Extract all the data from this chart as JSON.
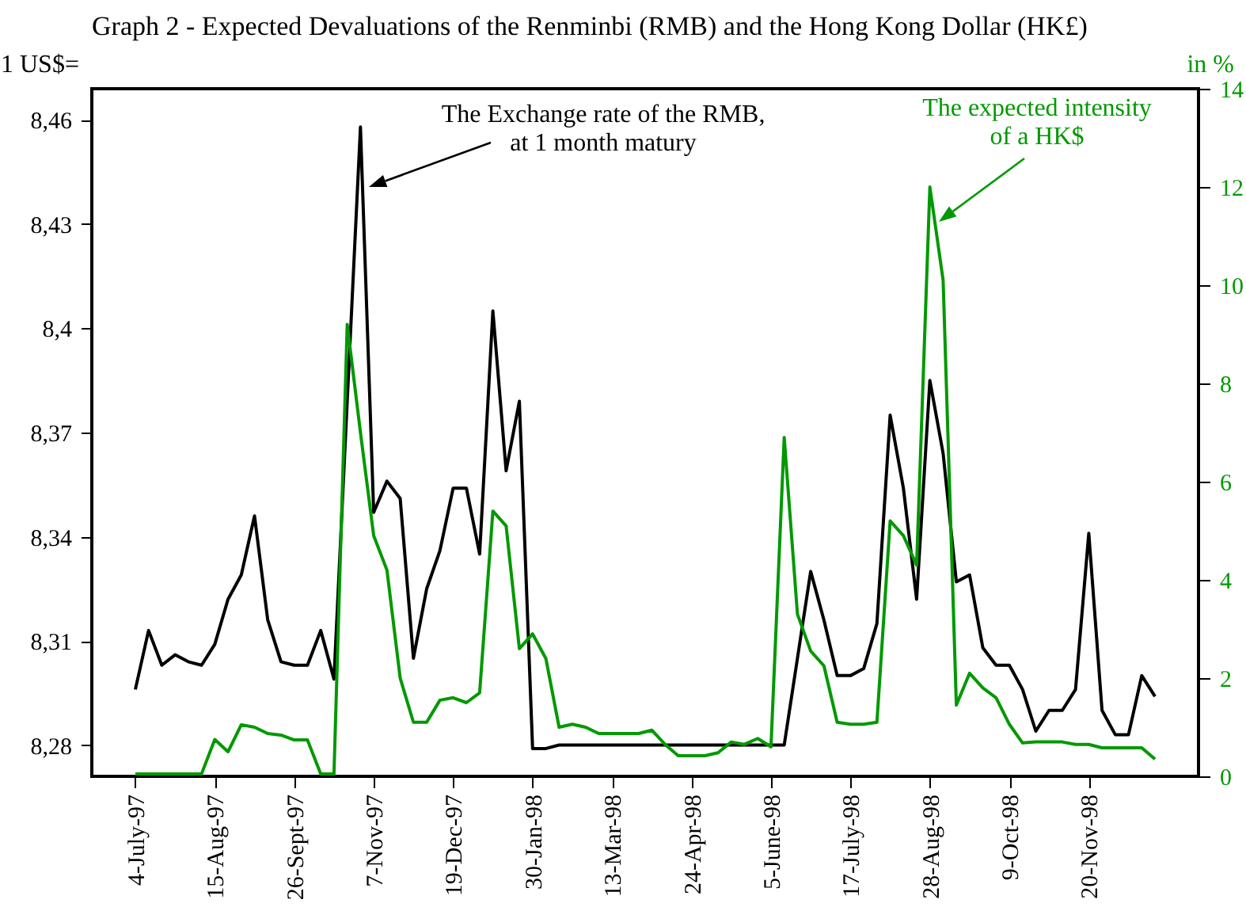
{
  "chart_data": {
    "type": "line",
    "title": "Graph 2 - Expected Devaluations of the Renminbi (RMB) and the Hong Kong Dollar (HK£)",
    "ylabel": "1 US$=",
    "y2label": "in %",
    "x": [
      "1997-07-04",
      "1997-07-11",
      "1997-07-18",
      "1997-07-25",
      "1997-08-01",
      "1997-08-08",
      "1997-08-15",
      "1997-08-22",
      "1997-08-29",
      "1997-09-05",
      "1997-09-12",
      "1997-09-19",
      "1997-09-26",
      "1997-10-03",
      "1997-10-10",
      "1997-10-17",
      "1997-10-24",
      "1997-10-31",
      "1997-11-07",
      "1997-11-14",
      "1997-11-21",
      "1997-11-28",
      "1997-12-05",
      "1997-12-12",
      "1997-12-19",
      "1997-12-26",
      "1998-01-02",
      "1998-01-09",
      "1998-01-16",
      "1998-01-23",
      "1998-01-30",
      "1998-02-06",
      "1998-02-13",
      "1998-02-20",
      "1998-02-27",
      "1998-03-06",
      "1998-03-13",
      "1998-03-20",
      "1998-03-27",
      "1998-04-03",
      "1998-04-10",
      "1998-04-17",
      "1998-04-24",
      "1998-05-01",
      "1998-05-08",
      "1998-05-15",
      "1998-05-22",
      "1998-05-29",
      "1998-06-05",
      "1998-06-12",
      "1998-06-19",
      "1998-06-26",
      "1998-07-03",
      "1998-07-10",
      "1998-07-17",
      "1998-07-24",
      "1998-07-31",
      "1998-08-07",
      "1998-08-14",
      "1998-08-21",
      "1998-08-28",
      "1998-09-04",
      "1998-09-11",
      "1998-09-18",
      "1998-09-25",
      "1998-10-02",
      "1998-10-09",
      "1998-10-16",
      "1998-10-23",
      "1998-10-30",
      "1998-11-06",
      "1998-11-13",
      "1998-11-20",
      "1998-11-27",
      "1998-12-04",
      "1998-12-11",
      "1998-12-18",
      "1998-12-25"
    ],
    "series": [
      {
        "color": "#000000",
        "values": [
          8.296,
          8.313,
          8.303,
          8.306,
          8.304,
          8.303,
          8.309,
          8.322,
          8.329,
          8.346,
          8.316,
          8.304,
          8.303,
          8.303,
          8.313,
          8.299,
          8.379,
          8.458,
          8.347,
          8.356,
          8.351,
          8.305,
          8.325,
          8.336,
          8.354,
          8.354,
          8.335,
          8.405,
          8.359,
          8.379,
          8.279,
          8.279,
          8.28,
          8.28,
          8.28,
          8.28,
          8.28,
          8.28,
          8.28,
          8.28,
          8.28,
          8.28,
          8.28,
          8.28,
          8.28,
          8.28,
          8.28,
          8.28,
          8.28,
          8.28,
          8.305,
          8.33,
          8.316,
          8.3,
          8.3,
          8.302,
          8.315,
          8.375,
          8.354,
          8.322,
          8.385,
          8.364,
          8.327,
          8.329,
          8.308,
          8.303,
          8.303,
          8.296,
          8.284,
          8.29,
          8.29,
          8.296,
          8.341,
          8.29,
          8.283,
          8.283,
          8.3,
          8.294
        ]
      },
      {
        "color": "#009900",
        "axis": "y2",
        "values": [
          0.05,
          0.05,
          0.05,
          0.05,
          0.05,
          0.05,
          0.75,
          0.5,
          1.05,
          1.0,
          0.87,
          0.84,
          0.74,
          0.74,
          0.05,
          0.05,
          9.2,
          7.0,
          4.9,
          4.2,
          2.0,
          1.1,
          1.1,
          1.55,
          1.6,
          1.5,
          1.7,
          5.4,
          5.1,
          2.6,
          2.9,
          2.4,
          1.0,
          1.06,
          1.0,
          0.87,
          0.87,
          0.87,
          0.87,
          0.94,
          0.65,
          0.42,
          0.42,
          0.42,
          0.48,
          0.7,
          0.65,
          0.77,
          0.6,
          6.9,
          3.3,
          2.55,
          2.25,
          1.1,
          1.06,
          1.06,
          1.1,
          5.2,
          4.9,
          4.3,
          12.0,
          10.1,
          1.45,
          2.1,
          1.8,
          1.6,
          1.06,
          0.68,
          0.7,
          0.7,
          0.7,
          0.65,
          0.65,
          0.58,
          0.58,
          0.58,
          0.58,
          0.35
        ]
      }
    ],
    "xlim": [
      "1997-06-11",
      "1999-01-17"
    ],
    "xticks": [
      {
        "value": "1997-07-04",
        "label": "4-July-97"
      },
      {
        "value": "1997-08-15",
        "label": "15-Aug-97"
      },
      {
        "value": "1997-09-26",
        "label": "26-Sept-97"
      },
      {
        "value": "1997-11-07",
        "label": "7-Nov-97"
      },
      {
        "value": "1997-12-19",
        "label": "19-Dec-97"
      },
      {
        "value": "1998-01-30",
        "label": "30-Jan-98"
      },
      {
        "value": "1998-03-13",
        "label": "13-Mar-98"
      },
      {
        "value": "1998-04-24",
        "label": "24-Apr-98"
      },
      {
        "value": "1998-06-05",
        "label": "5-June-98"
      },
      {
        "value": "1998-07-17",
        "label": "17-July-98"
      },
      {
        "value": "1998-08-28",
        "label": "28-Aug-98"
      },
      {
        "value": "1998-10-09",
        "label": "9-Oct-98"
      },
      {
        "value": "1998-11-20",
        "label": "20-Nov-98"
      }
    ],
    "ylim": [
      8.271,
      8.469
    ],
    "yticks": [
      {
        "value": 8.28,
        "label": "8,28"
      },
      {
        "value": 8.31,
        "label": "8,31"
      },
      {
        "value": 8.34,
        "label": "8,34"
      },
      {
        "value": 8.37,
        "label": "8,37"
      },
      {
        "value": 8.4,
        "label": "8,4"
      },
      {
        "value": 8.43,
        "label": "8,43"
      },
      {
        "value": 8.46,
        "label": "8,46"
      }
    ],
    "y2lim": [
      0,
      14
    ],
    "y2ticks": [
      0,
      2,
      4,
      6,
      8,
      10,
      12,
      14
    ],
    "annotations": [
      "The Exchange rate of the RMB,\nat 1 month matury",
      "The expected intensity\nof a  HK$"
    ],
    "grid": false,
    "marker": "none",
    "line_style": "solid"
  }
}
